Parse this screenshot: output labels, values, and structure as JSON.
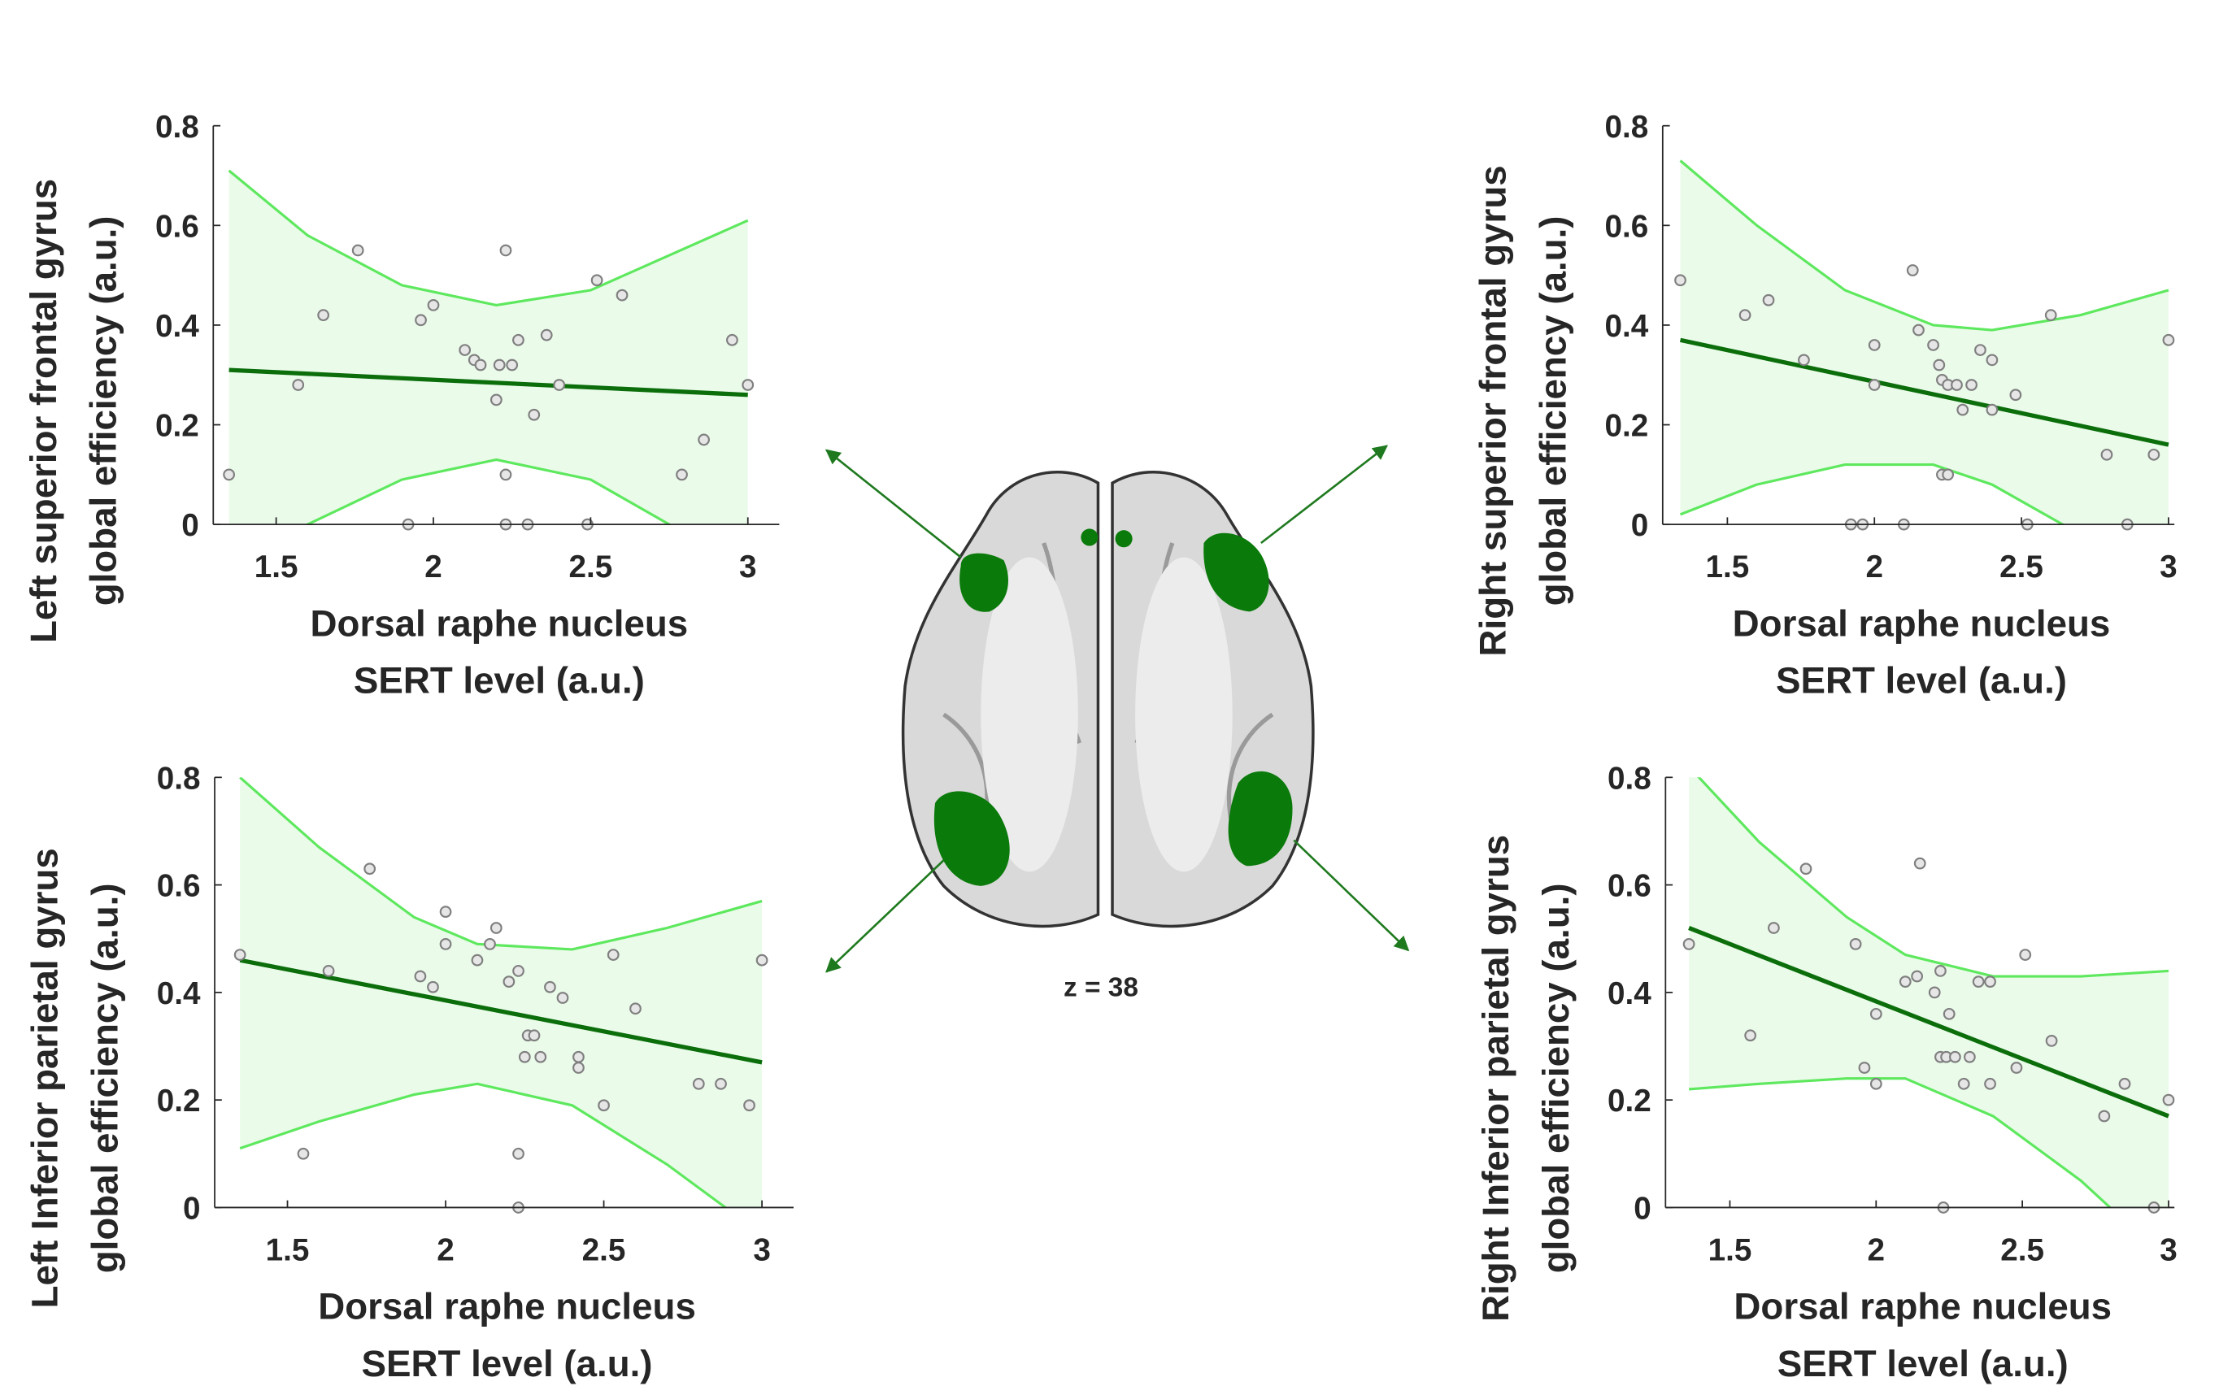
{
  "chart_data": [
    {
      "type": "scatter",
      "ylabel_lines": [
        "Left superior frontal gyrus",
        "global efficiency (a.u.)"
      ],
      "xlabel_lines": [
        "Dorsal raphe nucleus",
        "SERT level (a.u.)"
      ],
      "xlim": [
        1.3,
        3.1
      ],
      "ylim": [
        0,
        0.8
      ],
      "xticks": [
        1.5,
        2,
        2.5,
        3
      ],
      "yticks": [
        0,
        0.2,
        0.4,
        0.6,
        0.8
      ],
      "point_color": "#7f7f7f",
      "x": [
        1.35,
        1.57,
        1.65,
        1.76,
        1.92,
        1.96,
        2.0,
        2.1,
        2.13,
        2.15,
        2.2,
        2.21,
        2.23,
        2.23,
        2.23,
        2.25,
        2.27,
        2.3,
        2.32,
        2.36,
        2.4,
        2.49,
        2.52,
        2.6,
        2.79,
        2.86,
        2.95,
        3.0
      ],
      "values": [
        0.1,
        0.28,
        0.42,
        0.55,
        0,
        0.41,
        0.44,
        0.35,
        0.33,
        0.32,
        0.25,
        0.32,
        0.55,
        0.1,
        0,
        0.32,
        0.37,
        0,
        0.22,
        0.38,
        0.28,
        0,
        0.49,
        0.46,
        0.1,
        0.17,
        0.37,
        0.28
      ],
      "fit": {
        "color": "#0b6e0b",
        "x": [
          1.35,
          3.0
        ],
        "values": [
          0.31,
          0.26
        ]
      },
      "ci": {
        "color": "#5ee85e",
        "fill": "#eafbea",
        "x": [
          1.35,
          1.6,
          1.9,
          2.2,
          2.5,
          2.75,
          3.0
        ],
        "upper": [
          0.71,
          0.58,
          0.48,
          0.44,
          0.47,
          0.54,
          0.61
        ],
        "lower": [
          -0.08,
          0.0,
          0.09,
          0.13,
          0.09,
          0.0,
          -0.09
        ]
      }
    },
    {
      "type": "scatter",
      "ylabel_lines": [
        "Right superior frontal gyrus",
        "global efficiency (a.u.)"
      ],
      "xlabel_lines": [
        "Dorsal raphe nucleus",
        "SERT level (a.u.)"
      ],
      "xlim": [
        1.28,
        3.02
      ],
      "ylim": [
        0,
        0.8
      ],
      "xticks": [
        1.5,
        2,
        2.5,
        3
      ],
      "yticks": [
        0,
        0.2,
        0.4,
        0.6,
        0.8
      ],
      "point_color": "#7f7f7f",
      "x": [
        1.34,
        1.56,
        1.64,
        1.76,
        1.92,
        1.96,
        2.1,
        2.0,
        2.0,
        2.13,
        2.15,
        2.2,
        2.22,
        2.23,
        2.23,
        2.25,
        2.25,
        2.28,
        2.3,
        2.33,
        2.36,
        2.4,
        2.4,
        2.48,
        2.52,
        2.6,
        2.79,
        2.86,
        2.95,
        3.0
      ],
      "values": [
        0.49,
        0.42,
        0.45,
        0.33,
        0,
        0,
        0,
        0.36,
        0.28,
        0.51,
        0.39,
        0.36,
        0.32,
        0.29,
        0.1,
        0.1,
        0.28,
        0.28,
        0.23,
        0.28,
        0.35,
        0.33,
        0.23,
        0.26,
        0,
        0.42,
        0.14,
        0,
        0.14,
        0.37
      ],
      "fit": {
        "color": "#0b6e0b",
        "x": [
          1.34,
          3.0
        ],
        "values": [
          0.37,
          0.16
        ]
      },
      "ci": {
        "color": "#5ee85e",
        "fill": "#eafbea",
        "x": [
          1.34,
          1.6,
          1.9,
          2.2,
          2.4,
          2.7,
          3.0
        ],
        "upper": [
          0.73,
          0.6,
          0.47,
          0.4,
          0.39,
          0.42,
          0.47
        ],
        "lower": [
          0.02,
          0.08,
          0.12,
          0.12,
          0.08,
          -0.02,
          -0.1
        ]
      }
    },
    {
      "type": "scatter",
      "ylabel_lines": [
        "Left Inferior parietal gyrus",
        "global efficiency (a.u.)"
      ],
      "xlabel_lines": [
        "Dorsal raphe nucleus",
        "SERT level (a.u.)"
      ],
      "xlim": [
        1.27,
        3.1
      ],
      "ylim": [
        0,
        0.8
      ],
      "xticks": [
        1.5,
        2,
        2.5,
        3
      ],
      "yticks": [
        0,
        0.2,
        0.4,
        0.6,
        0.8
      ],
      "point_color": "#7f7f7f",
      "x": [
        1.35,
        1.55,
        1.63,
        1.76,
        1.92,
        1.96,
        2.0,
        2.0,
        2.1,
        2.14,
        2.16,
        2.2,
        2.23,
        2.23,
        2.23,
        2.25,
        2.26,
        2.28,
        2.3,
        2.33,
        2.37,
        2.42,
        2.42,
        2.5,
        2.53,
        2.6,
        2.8,
        2.87,
        2.96,
        3.0
      ],
      "values": [
        0.47,
        0.1,
        0.44,
        0.63,
        0.43,
        0.41,
        0.55,
        0.49,
        0.46,
        0.49,
        0.52,
        0.42,
        0.44,
        0.1,
        0,
        0.28,
        0.32,
        0.32,
        0.28,
        0.41,
        0.39,
        0.28,
        0.26,
        0.19,
        0.47,
        0.37,
        0.23,
        0.23,
        0.19,
        0.46
      ],
      "fit": {
        "color": "#0b6e0b",
        "x": [
          1.35,
          3.0
        ],
        "values": [
          0.46,
          0.27
        ]
      },
      "ci": {
        "color": "#5ee85e",
        "fill": "#eafbea",
        "x": [
          1.35,
          1.6,
          1.9,
          2.1,
          2.4,
          2.7,
          3.0
        ],
        "upper": [
          0.8,
          0.67,
          0.54,
          0.49,
          0.48,
          0.52,
          0.57
        ],
        "lower": [
          0.11,
          0.16,
          0.21,
          0.23,
          0.19,
          0.08,
          -0.05
        ]
      }
    },
    {
      "type": "scatter",
      "ylabel_lines": [
        "Right Inferior parietal gyrus",
        "global efficiency (a.u.)"
      ],
      "xlabel_lines": [
        "Dorsal raphe nucleus",
        "SERT level (a.u.)"
      ],
      "xlim": [
        1.28,
        3.02
      ],
      "ylim": [
        0,
        0.8
      ],
      "xticks": [
        1.5,
        2,
        2.5,
        3
      ],
      "yticks": [
        0,
        0.2,
        0.4,
        0.6,
        0.8
      ],
      "point_color": "#7f7f7f",
      "x": [
        1.36,
        1.57,
        1.65,
        1.76,
        1.93,
        1.96,
        2.0,
        2.0,
        2.1,
        2.14,
        2.15,
        2.2,
        2.22,
        2.22,
        2.23,
        2.24,
        2.25,
        2.27,
        2.3,
        2.32,
        2.35,
        2.39,
        2.39,
        2.48,
        2.51,
        2.6,
        2.78,
        2.85,
        2.95,
        3.0
      ],
      "values": [
        0.49,
        0.32,
        0.52,
        0.63,
        0.49,
        0.26,
        0.23,
        0.36,
        0.42,
        0.43,
        0.64,
        0.4,
        0.44,
        0.28,
        0,
        0.28,
        0.36,
        0.28,
        0.23,
        0.28,
        0.42,
        0.42,
        0.23,
        0.26,
        0.47,
        0.31,
        0.17,
        0.23,
        0,
        0.2
      ],
      "fit": {
        "color": "#0b6e0b",
        "x": [
          1.36,
          3.0
        ],
        "values": [
          0.52,
          0.17
        ]
      },
      "ci": {
        "color": "#5ee85e",
        "fill": "#eafbea",
        "x": [
          1.36,
          1.6,
          1.9,
          2.1,
          2.4,
          2.7,
          3.0
        ],
        "upper": [
          0.82,
          0.68,
          0.54,
          0.47,
          0.43,
          0.43,
          0.44
        ],
        "lower": [
          0.22,
          0.23,
          0.24,
          0.24,
          0.17,
          0.05,
          -0.1
        ]
      }
    }
  ],
  "brain_label": "z = 38"
}
